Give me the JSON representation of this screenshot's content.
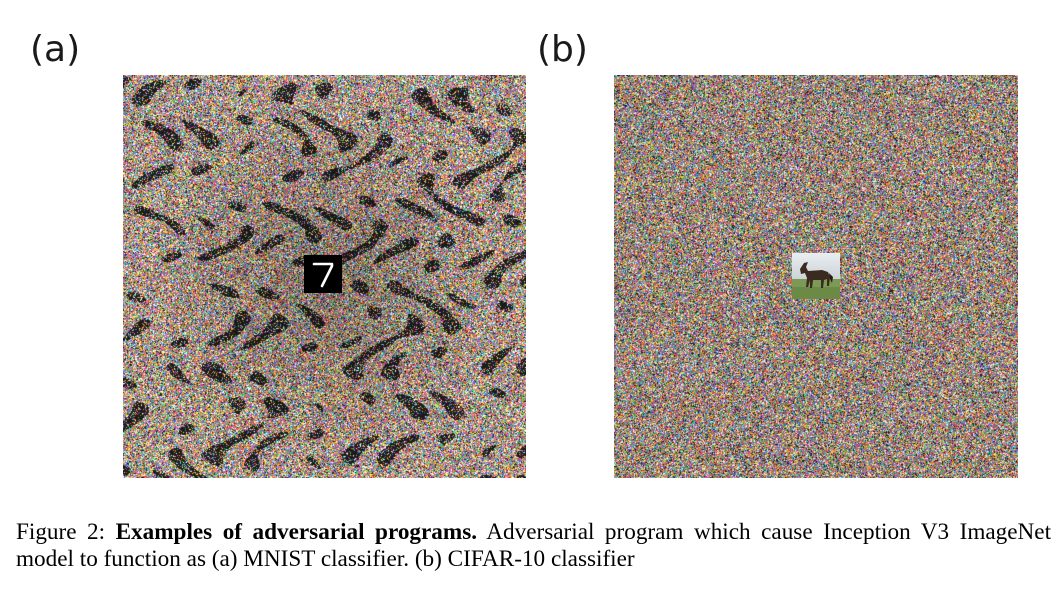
{
  "figure": {
    "panels": [
      {
        "label": "(a)",
        "inset": "MNIST digit 7"
      },
      {
        "label": "(b)",
        "inset": "CIFAR-10 horse"
      }
    ],
    "caption": {
      "prefix": "Figure 2: ",
      "title": "Examples of adversarial programs.",
      "body": " Adversarial program which cause Inception V3 ImageNet model to function as (a) MNIST classifier. (b) CIFAR-10 classifier"
    }
  }
}
